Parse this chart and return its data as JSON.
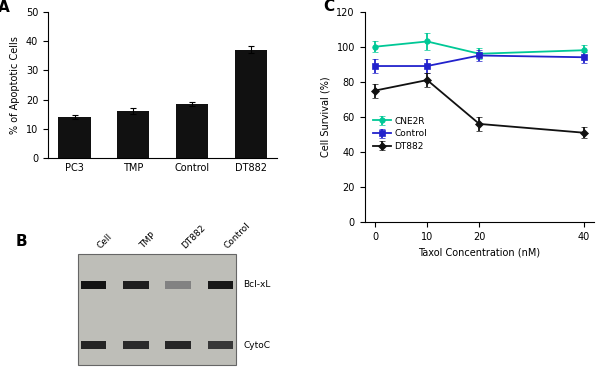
{
  "panel_A": {
    "categories": [
      "PC3",
      "TMP",
      "Control",
      "DT882"
    ],
    "values": [
      14,
      16,
      18.5,
      37
    ],
    "errors": [
      0.8,
      1.0,
      0.8,
      1.2
    ],
    "ylabel": "% of Apoptotic Cells",
    "ylim": [
      0,
      50
    ],
    "yticks": [
      0,
      10,
      20,
      30,
      40,
      50
    ],
    "bar_color": "#111111",
    "label": "A"
  },
  "panel_C": {
    "x": [
      0,
      10,
      20,
      40
    ],
    "CNE2R": [
      100,
      103,
      96,
      98
    ],
    "CNE2R_err": [
      3,
      5,
      3,
      3
    ],
    "Control": [
      89,
      89,
      95,
      94
    ],
    "Control_err": [
      4,
      4,
      3,
      3
    ],
    "DT882": [
      75,
      81,
      56,
      51
    ],
    "DT882_err": [
      4,
      4,
      4,
      3
    ],
    "xlabel": "Taxol Concentration (nM)",
    "ylabel": "Cell Survival (%)",
    "ylim": [
      0,
      120
    ],
    "yticks": [
      0,
      20,
      40,
      60,
      80,
      100,
      120
    ],
    "CNE2R_color": "#00c896",
    "Control_color": "#2222cc",
    "DT882_color": "#111111",
    "label": "C"
  },
  "panel_B": {
    "label": "B",
    "lane_labels": [
      "Cell",
      "TMP",
      "DT882",
      "Control"
    ],
    "band_labels": [
      "Bcl-xL",
      "CytoC"
    ],
    "blot_bg": "#c8c8c0",
    "band_dark": "#1a1a1a",
    "band_mid": "#3a3a3a"
  }
}
